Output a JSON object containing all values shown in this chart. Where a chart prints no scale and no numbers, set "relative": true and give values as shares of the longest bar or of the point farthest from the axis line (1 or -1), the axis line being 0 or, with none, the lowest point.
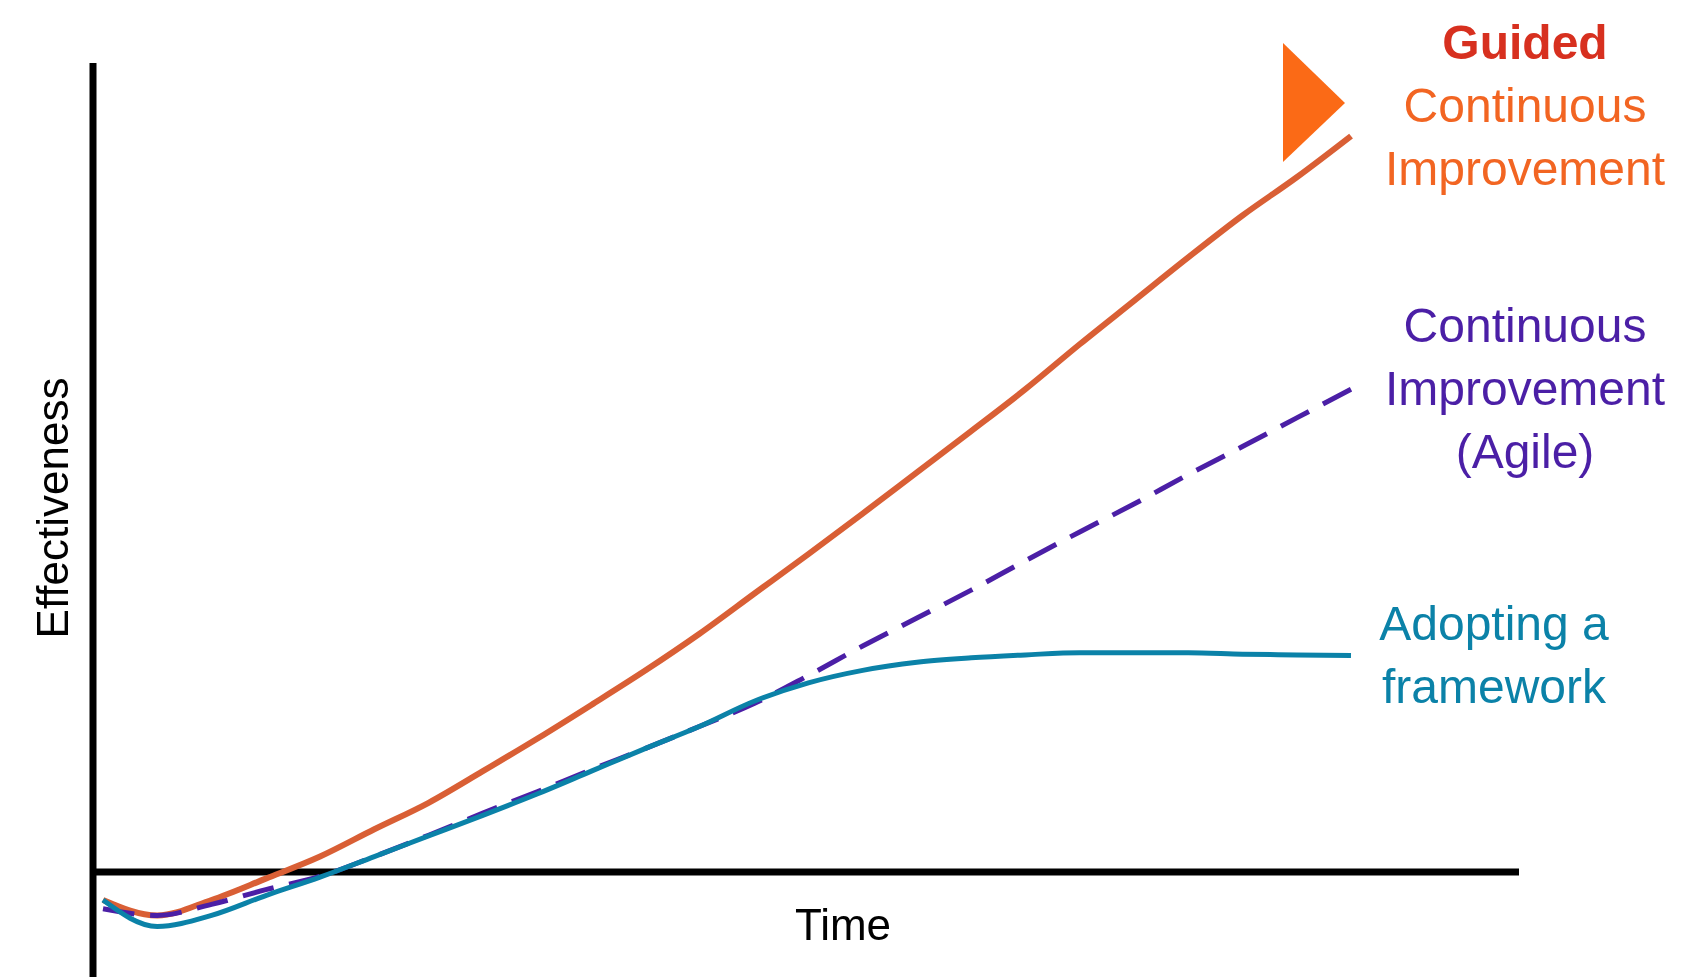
{
  "chart_data": {
    "type": "line",
    "relative": true,
    "xlabel": "Time",
    "ylabel": "Effectiveness",
    "categories": [
      null,
      null,
      null,
      null,
      null,
      null,
      null,
      null,
      null,
      null,
      null,
      null,
      null,
      null,
      null,
      null,
      null,
      null,
      null,
      null,
      null,
      null,
      null,
      null
    ],
    "series": [
      {
        "name": "Guided Continuous Improvement",
        "color": "#d95f35",
        "line_style": "solid",
        "values": [
          -0.038,
          -0.059,
          -0.038,
          -0.009,
          0.021,
          0.058,
          0.094,
          0.137,
          0.181,
          0.227,
          0.274,
          0.324,
          0.378,
          0.432,
          0.487,
          0.543,
          0.599,
          0.656,
          0.717,
          0.776,
          0.835,
          0.892,
          0.944,
          1
        ]
      },
      {
        "name": "Continuous Improvement (Agile)",
        "color": "#4b1fa6",
        "line_style": "dashed",
        "values": [
          -0.05,
          -0.059,
          -0.044,
          -0.024,
          -0.006,
          0.021,
          0.05,
          0.08,
          0.109,
          0.139,
          0.168,
          0.198,
          0.229,
          0.267,
          0.307,
          0.345,
          0.383,
          0.423,
          0.462,
          0.5,
          0.54,
          0.578,
          0.617,
          0.656
        ]
      },
      {
        "name": "Adopting a framework",
        "color": "#0b82a8",
        "line_style": "solid",
        "values": [
          -0.038,
          -0.074,
          -0.059,
          -0.032,
          -0.007,
          0.021,
          0.049,
          0.077,
          0.106,
          0.137,
          0.168,
          0.198,
          0.232,
          0.257,
          0.274,
          0.285,
          0.291,
          0.295,
          0.298,
          0.298,
          0.298,
          0.296,
          0.295,
          0.294
        ]
      }
    ]
  }
}
